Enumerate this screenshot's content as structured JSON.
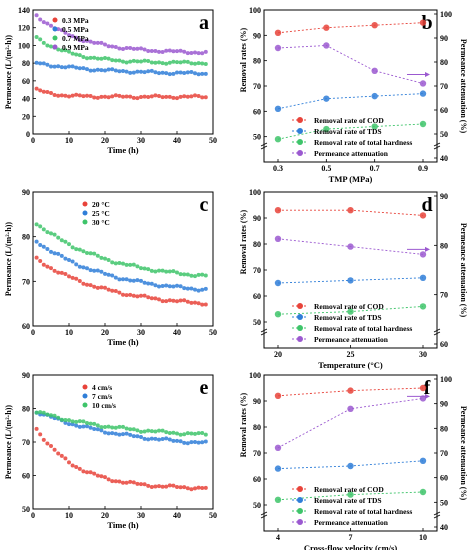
{
  "colors": {
    "red": "#e8433a",
    "blue": "#2f7ed8",
    "green": "#3ec46a",
    "purple": "#9b59d0"
  },
  "chart_data": [
    {
      "id": "a",
      "type": "scatter",
      "panel_label": "a",
      "xlabel": "Time (h)",
      "ylabel": "Permeance (L/(m²·h))",
      "xlim": [
        0,
        50
      ],
      "ylim": [
        0,
        140
      ],
      "xticks": [
        "0",
        "10",
        "20",
        "30",
        "40",
        "50"
      ],
      "yticks": [
        "0",
        "20",
        "40",
        "60",
        "80",
        "100",
        "120",
        "140"
      ],
      "legend_position": "top-left",
      "series": [
        {
          "name": "0.3 MPa",
          "color": "#e8433a",
          "start": 50,
          "end": 42,
          "k": 0.2
        },
        {
          "name": "0.5 MPa",
          "color": "#2f7ed8",
          "start": 80,
          "end": 67,
          "k": 0.05
        },
        {
          "name": "0.7 MPa",
          "color": "#3ec46a",
          "start": 109,
          "end": 80,
          "k": 0.1
        },
        {
          "name": "0.9 MPa",
          "color": "#9b59d0",
          "start": 134,
          "end": 91,
          "k": 0.08
        }
      ]
    },
    {
      "id": "b",
      "type": "line",
      "panel_label": "b",
      "xlabel": "TMP (MPa)",
      "ylabel": "Removal rates (%)",
      "ylabel_right": "Permeance attenuation (%)",
      "categories": [
        "0.3",
        "0.5",
        "0.7",
        "0.9"
      ],
      "ylim": [
        40,
        100
      ],
      "yticks": [
        "50",
        "60",
        "70",
        "80",
        "90",
        "100"
      ],
      "yticks_right": [
        "40",
        "50",
        "60",
        "70",
        "80",
        "90",
        "100"
      ],
      "legend_position": "bottom-center",
      "series": [
        {
          "name": "Removal rate of COD",
          "color": "#e8433a",
          "values": [
            91,
            93,
            94,
            95
          ]
        },
        {
          "name": "Removal rate of TDS",
          "color": "#2f7ed8",
          "values": [
            61,
            65,
            66,
            67
          ]
        },
        {
          "name": "Removal rate of total hardness",
          "color": "#3ec46a",
          "values": [
            49,
            53,
            54,
            55
          ]
        },
        {
          "name": "Permeance attenuation",
          "color": "#9b59d0",
          "values": [
            85,
            86,
            76,
            71
          ]
        }
      ],
      "arrow_series": "Permeance attenuation"
    },
    {
      "id": "c",
      "type": "scatter",
      "panel_label": "c",
      "xlabel": "Time (h)",
      "ylabel": "Permeance (L/(m²·h))",
      "xlim": [
        0,
        50
      ],
      "ylim": [
        60,
        90
      ],
      "xticks": [
        "0",
        "10",
        "20",
        "30",
        "40",
        "50"
      ],
      "yticks": [
        "60",
        "70",
        "80",
        "90"
      ],
      "legend_position": "top-center",
      "series": [
        {
          "name": "20 °C",
          "color": "#e8433a",
          "start": 75,
          "end": 64,
          "k": 0.05
        },
        {
          "name": "25 °C",
          "color": "#2f7ed8",
          "start": 79,
          "end": 67,
          "k": 0.05
        },
        {
          "name": "30 °C",
          "color": "#3ec46a",
          "start": 83,
          "end": 70,
          "k": 0.05
        }
      ]
    },
    {
      "id": "d",
      "type": "line",
      "panel_label": "d",
      "xlabel": "Temperature (°C)",
      "ylabel": "Removal rates (%)",
      "ylabel_right": "Permeance attenuation (%)",
      "categories": [
        "20",
        "25",
        "30"
      ],
      "ylim": [
        40,
        100
      ],
      "yticks": [
        "50",
        "60",
        "70",
        "80",
        "90",
        "100"
      ],
      "yticks_right": [
        "60",
        "70",
        "80",
        "90"
      ],
      "legend_position": "bottom-center",
      "series": [
        {
          "name": "Removal rate of COD",
          "color": "#e8433a",
          "values": [
            93,
            93,
            91
          ]
        },
        {
          "name": "Removal rate of TDS",
          "color": "#2f7ed8",
          "values": [
            65,
            66,
            67
          ]
        },
        {
          "name": "Removal rate of total hardness",
          "color": "#3ec46a",
          "values": [
            53,
            54,
            56
          ]
        },
        {
          "name": "Permeance attenuation",
          "color": "#9b59d0",
          "values": [
            82,
            79,
            76
          ]
        }
      ],
      "arrow_series": "Permeance attenuation"
    },
    {
      "id": "e",
      "type": "scatter",
      "panel_label": "e",
      "xlabel": "Time (h)",
      "ylabel": "Permeance (L/(m²·h))",
      "xlim": [
        0,
        50
      ],
      "ylim": [
        50,
        90
      ],
      "xticks": [
        "0",
        "10",
        "20",
        "30",
        "40",
        "50"
      ],
      "yticks": [
        "50",
        "60",
        "70",
        "80",
        "90"
      ],
      "legend_position": "top-center",
      "series": [
        {
          "name": "4 cm/s",
          "color": "#e8433a",
          "start": 74,
          "end": 56,
          "k": 0.09
        },
        {
          "name": "7 cm/s",
          "color": "#2f7ed8",
          "start": 79,
          "end": 68,
          "k": 0.04
        },
        {
          "name": "10 cm/s",
          "color": "#3ec46a",
          "start": 79,
          "end": 71,
          "k": 0.04
        }
      ]
    },
    {
      "id": "f",
      "type": "line",
      "panel_label": "f",
      "xlabel": "Cross-flow velocity (cm/s)",
      "ylabel": "Removal rates (%)",
      "ylabel_right": "Permeance attenuation (%)",
      "categories": [
        "4",
        "7",
        "10"
      ],
      "ylim": [
        40,
        100
      ],
      "yticks": [
        "50",
        "60",
        "70",
        "80",
        "90",
        "100"
      ],
      "yticks_right": [
        "40",
        "50",
        "60",
        "70",
        "80",
        "90",
        "100"
      ],
      "legend_position": "bottom-center",
      "series": [
        {
          "name": "Removal rate of COD",
          "color": "#e8433a",
          "values": [
            92,
            94,
            95
          ]
        },
        {
          "name": "Removal rate of TDS",
          "color": "#2f7ed8",
          "values": [
            64,
            65,
            67
          ]
        },
        {
          "name": "Removal rate of total hardness",
          "color": "#3ec46a",
          "values": [
            52,
            54,
            55
          ]
        },
        {
          "name": "Permeance attenuation",
          "color": "#9b59d0",
          "values": [
            72,
            87,
            91
          ]
        }
      ],
      "arrow_series": "Permeance attenuation"
    }
  ]
}
